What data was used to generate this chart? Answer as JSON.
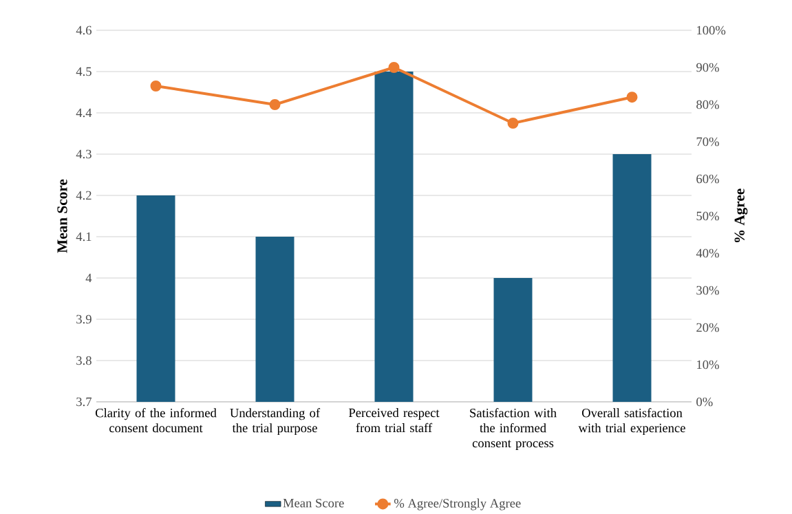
{
  "chart_data": {
    "type": "bar",
    "categories": [
      "Clarity of the informed consent document",
      "Understanding of the trial purpose",
      "Perceived respect from trial staff",
      "Satisfaction with the informed consent process",
      "Overall satisfaction with trial experience"
    ],
    "series": [
      {
        "name": "Mean Score",
        "color": "#1b5e82",
        "values": [
          4.2,
          4.1,
          4.5,
          4.0,
          4.3
        ]
      },
      {
        "name": "% Agree/Strongly Agree",
        "type": "line",
        "axis": "y2",
        "color": "#ed7d31",
        "values": [
          85,
          80,
          90,
          75,
          82
        ]
      }
    ],
    "ylabel": "Mean Score",
    "y2label": "% Agree",
    "ylim": [
      3.7,
      4.6
    ],
    "yticks": [
      3.7,
      3.8,
      3.9,
      4,
      4.1,
      4.2,
      4.3,
      4.4,
      4.5,
      4.6
    ],
    "y2lim": [
      0,
      100
    ],
    "y2ticks": [
      {
        "value": 0,
        "label": "0%"
      },
      {
        "value": 10,
        "label": "10%"
      },
      {
        "value": 20,
        "label": "20%"
      },
      {
        "value": 30,
        "label": "30%"
      },
      {
        "value": 40,
        "label": "40%"
      },
      {
        "value": 50,
        "label": "50%"
      },
      {
        "value": 60,
        "label": "60%"
      },
      {
        "value": 70,
        "label": "70%"
      },
      {
        "value": 80,
        "label": "80%"
      },
      {
        "value": 90,
        "label": "90%"
      },
      {
        "value": 100,
        "label": "100%"
      }
    ],
    "grid": "y",
    "legend": "bottom",
    "marker": "circle"
  }
}
